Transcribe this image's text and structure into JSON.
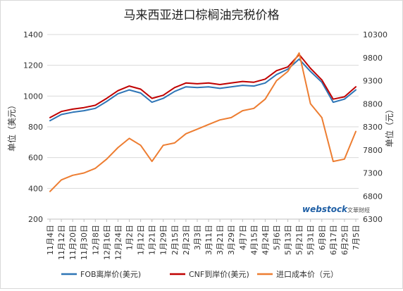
{
  "chart_data": {
    "type": "line",
    "title": "马来西亚进口棕榈油完税价格",
    "ylabel_left": "单位（美元）",
    "ylabel_right": "单位（元）",
    "ylim_left": [
      200,
      1400
    ],
    "ylim_right": [
      6300,
      10300
    ],
    "yticks_left": [
      "200",
      "400",
      "600",
      "800",
      "1000",
      "1200",
      "1400"
    ],
    "yticks_right": [
      "6300",
      "6800",
      "7300",
      "7800",
      "8300",
      "8800",
      "9300",
      "9800",
      "10300"
    ],
    "categories": [
      "11月4日",
      "11月12日",
      "11月20日",
      "11月30日",
      "12月8日",
      "12月16日",
      "12月24日",
      "1月2日",
      "1月12日",
      "1月21日",
      "1月29日",
      "2月15日",
      "2月23日",
      "3月3日",
      "3月11日",
      "3月21日",
      "3月29日",
      "4月7日",
      "4月15日",
      "4月24日",
      "5月6日",
      "5月13日",
      "5月21日",
      "5月31日",
      "6月8日",
      "6月17日",
      "6月25日",
      "7月5日"
    ],
    "series": [
      {
        "name": "FOB离岸价(美元)",
        "axis": "left",
        "color": "#2e75b6",
        "values": [
          840,
          880,
          895,
          905,
          920,
          965,
          1015,
          1040,
          1020,
          960,
          985,
          1030,
          1060,
          1055,
          1060,
          1050,
          1060,
          1070,
          1065,
          1085,
          1140,
          1175,
          1240,
          1160,
          1090,
          960,
          980,
          1040
        ]
      },
      {
        "name": "CNF到岸价(美元)",
        "axis": "left",
        "color": "#c00000",
        "values": [
          860,
          900,
          915,
          925,
          940,
          985,
          1035,
          1065,
          1045,
          985,
          1005,
          1055,
          1085,
          1080,
          1085,
          1075,
          1085,
          1095,
          1090,
          1110,
          1165,
          1190,
          1270,
          1180,
          1105,
          980,
          995,
          1060
        ]
      },
      {
        "name": "进口成本价（元）",
        "axis": "right",
        "color": "#ed7d31",
        "values": [
          6900,
          7150,
          7250,
          7300,
          7400,
          7600,
          7850,
          8050,
          7900,
          7550,
          7900,
          7950,
          8150,
          8250,
          8350,
          8450,
          8500,
          8650,
          8700,
          8900,
          9300,
          9500,
          9900,
          8800,
          8500,
          7550,
          7600,
          8200
        ]
      }
    ],
    "legend_position": "bottom",
    "grid": "horizontal"
  },
  "watermark": {
    "brand": "webstock",
    "cn": "文華財經"
  }
}
